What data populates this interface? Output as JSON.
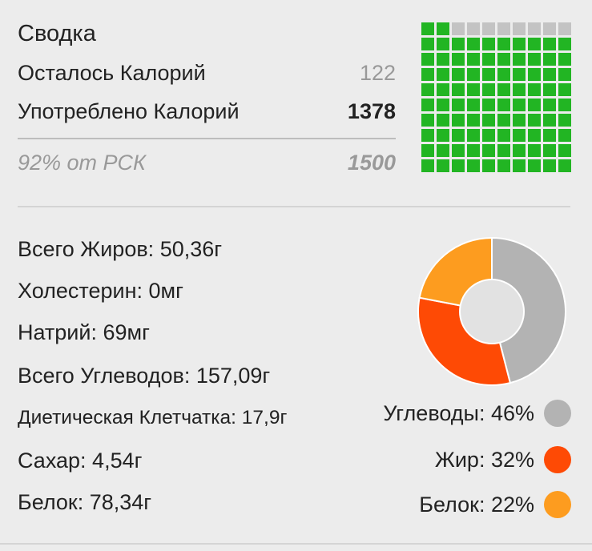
{
  "summary": {
    "title": "Сводка",
    "remaining_label": "Осталось Калорий",
    "remaining_value": "122",
    "consumed_label": "Употреблено Калорий",
    "consumed_value": "1378",
    "rsk_label": "92% от РСК",
    "rsk_value": "1500"
  },
  "grid": {
    "total": 100,
    "filled_fraction": 0.92,
    "colors": {
      "filled": "#22b523",
      "empty": "#c3c3c3"
    }
  },
  "nutrients": [
    "Всего Жиров: 50,36г",
    "Холестерин: 0мг",
    "Натрий: 69мг",
    "Всего Углеводов: 157,09г",
    "Диетическая Клетчатка: 17,9г",
    "Сахар: 4,54г",
    "Белок: 78,34г"
  ],
  "macros": [
    {
      "label": "Углеводы: 46%",
      "percent": 46,
      "color": "#b3b3b3"
    },
    {
      "label": "Жир: 32%",
      "percent": 32,
      "color": "#fe4a05"
    },
    {
      "label": "Белок: 22%",
      "percent": 22,
      "color": "#fd9c1f"
    }
  ]
}
